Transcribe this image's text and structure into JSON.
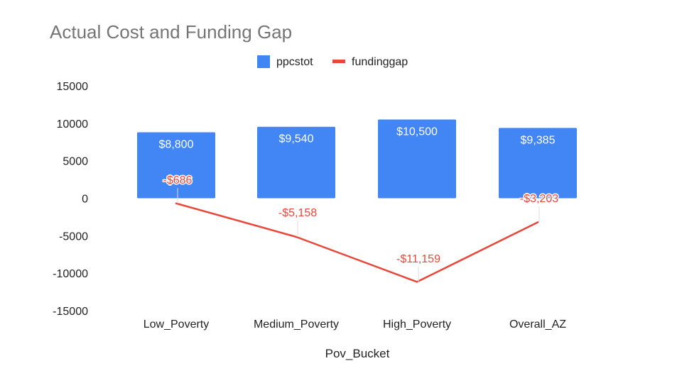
{
  "chart_data": {
    "type": "bar",
    "title": "Actual Cost and Funding Gap",
    "xlabel": "Pov_Bucket",
    "ylabel": "",
    "ylim": [
      -15000,
      15000
    ],
    "yticks": [
      "15000",
      "10000",
      "5000",
      "0",
      "-5000",
      "-10000",
      "-15000"
    ],
    "ytick_values": [
      15000,
      10000,
      5000,
      0,
      -5000,
      -10000,
      -15000
    ],
    "categories": [
      "Low_Poverty",
      "Medium_Poverty",
      "High_Poverty",
      "Overall_AZ"
    ],
    "legend_position": "top",
    "grid": false,
    "series": [
      {
        "name": "ppcstot",
        "type": "bar",
        "color": "#4285f4",
        "values": [
          8800,
          9540,
          10500,
          9385
        ],
        "labels": [
          "$8,800",
          "$9,540",
          "$10,500",
          "$9,385"
        ]
      },
      {
        "name": "fundinggap",
        "type": "line",
        "color": "#e8473a",
        "values": [
          -686,
          -5158,
          -11159,
          -3203
        ],
        "labels": [
          "-$686",
          "-$5,158",
          "-$11,159",
          "-$3,203"
        ]
      }
    ]
  }
}
